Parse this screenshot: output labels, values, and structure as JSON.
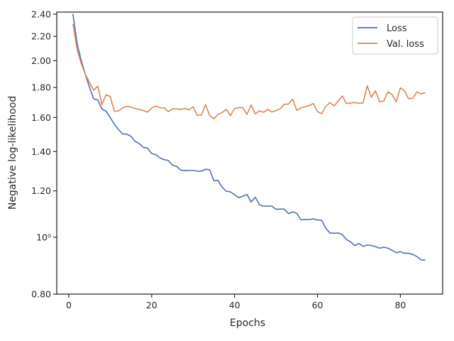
{
  "chart_data": {
    "type": "line",
    "title": "",
    "xlabel": "Epochs",
    "ylabel": "Negative log-likelihood",
    "xlim": [
      -2.9,
      90.2
    ],
    "ylim": [
      0.8,
      2.42
    ],
    "yscale": "log",
    "xticks": [
      0,
      20,
      40,
      60,
      80
    ],
    "yticks": [
      {
        "value": 0.8,
        "label": "0.80"
      },
      {
        "value": 1.0,
        "label": "10⁰"
      },
      {
        "value": 1.2,
        "label": "1.20"
      },
      {
        "value": 1.4,
        "label": "1.40"
      },
      {
        "value": 1.6,
        "label": "1.60"
      },
      {
        "value": 1.8,
        "label": "1.80"
      },
      {
        "value": 2.0,
        "label": "2.00"
      },
      {
        "value": 2.2,
        "label": "2.20"
      },
      {
        "value": 2.4,
        "label": "2.40"
      }
    ],
    "grid": false,
    "legend_position": "top-right",
    "x_start": 1,
    "series": [
      {
        "name": "Loss",
        "color": "#4c72b0",
        "values": [
          2.403,
          2.142,
          2.002,
          1.894,
          1.802,
          1.721,
          1.714,
          1.654,
          1.64,
          1.599,
          1.559,
          1.526,
          1.5,
          1.499,
          1.486,
          1.457,
          1.444,
          1.423,
          1.419,
          1.389,
          1.383,
          1.366,
          1.356,
          1.352,
          1.327,
          1.321,
          1.302,
          1.299,
          1.3,
          1.3,
          1.296,
          1.296,
          1.306,
          1.303,
          1.248,
          1.25,
          1.217,
          1.198,
          1.195,
          1.182,
          1.168,
          1.175,
          1.183,
          1.148,
          1.17,
          1.136,
          1.13,
          1.13,
          1.13,
          1.116,
          1.117,
          1.117,
          1.097,
          1.105,
          1.099,
          1.071,
          1.072,
          1.072,
          1.075,
          1.07,
          1.069,
          1.036,
          1.017,
          1.016,
          1.017,
          1.01,
          0.991,
          0.982,
          0.968,
          0.976,
          0.965,
          0.97,
          0.968,
          0.964,
          0.958,
          0.962,
          0.958,
          0.95,
          0.941,
          0.945,
          0.939,
          0.939,
          0.935,
          0.927,
          0.915,
          0.914
        ]
      },
      {
        "name": "Val. loss",
        "color": "#dd8452",
        "values": [
          2.31,
          2.091,
          1.979,
          1.894,
          1.836,
          1.78,
          1.81,
          1.683,
          1.749,
          1.738,
          1.64,
          1.642,
          1.662,
          1.671,
          1.667,
          1.656,
          1.652,
          1.644,
          1.634,
          1.66,
          1.674,
          1.662,
          1.662,
          1.637,
          1.655,
          1.655,
          1.651,
          1.658,
          1.649,
          1.668,
          1.614,
          1.616,
          1.683,
          1.612,
          1.592,
          1.62,
          1.631,
          1.652,
          1.612,
          1.658,
          1.663,
          1.663,
          1.62,
          1.681,
          1.623,
          1.643,
          1.633,
          1.652,
          1.635,
          1.645,
          1.656,
          1.685,
          1.687,
          1.719,
          1.646,
          1.662,
          1.669,
          1.678,
          1.69,
          1.638,
          1.624,
          1.671,
          1.697,
          1.674,
          1.707,
          1.741,
          1.69,
          1.694,
          1.697,
          1.692,
          1.694,
          1.812,
          1.733,
          1.777,
          1.7,
          1.707,
          1.77,
          1.751,
          1.701,
          1.797,
          1.776,
          1.722,
          1.725,
          1.77,
          1.755,
          1.765
        ]
      }
    ]
  }
}
